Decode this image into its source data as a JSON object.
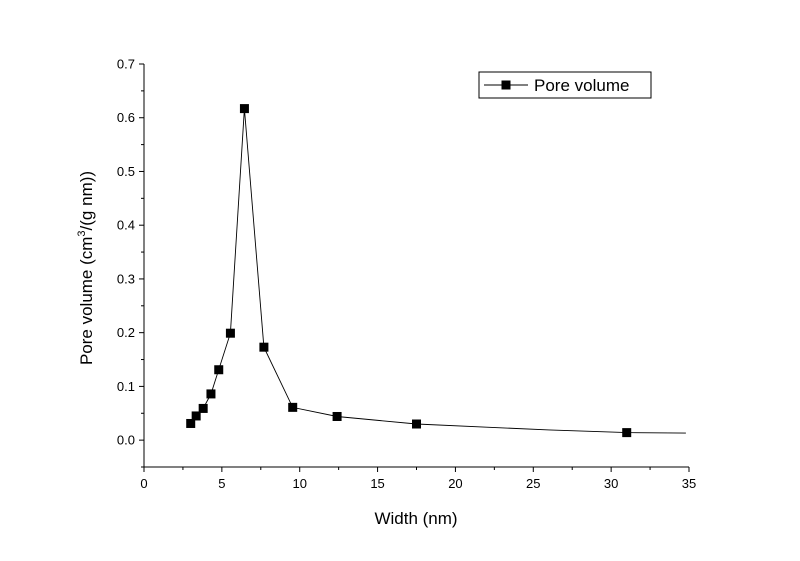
{
  "chart_data": {
    "type": "line",
    "xlabel": "Width (nm)",
    "ylabel": {
      "prefix": "Pore volume (cm",
      "superscript": "3",
      "suffix": "/(g nm))"
    },
    "xlim": [
      0,
      35
    ],
    "ylim": [
      -0.05,
      0.7
    ],
    "xticks": [
      "0",
      "5",
      "10",
      "15",
      "20",
      "25",
      "30",
      "35"
    ],
    "yticks": [
      "0.0",
      "0.1",
      "0.2",
      "0.3",
      "0.4",
      "0.5",
      "0.6",
      "0.7"
    ],
    "grid": false,
    "legend_position": "top-right",
    "marker": "square",
    "colors": {
      "series": "#000000",
      "axis": "#000000"
    },
    "series": [
      {
        "name": "Pore volume",
        "x": [
          3.0,
          3.35,
          3.8,
          4.3,
          4.8,
          5.55,
          6.45,
          7.7,
          9.55,
          12.4,
          17.5,
          31.0
        ],
        "y": [
          0.031,
          0.045,
          0.059,
          0.086,
          0.131,
          0.199,
          0.617,
          0.173,
          0.061,
          0.044,
          0.03,
          0.014
        ],
        "line_x": [
          3.0,
          3.35,
          3.8,
          4.3,
          4.8,
          5.55,
          6.45,
          7.7,
          9.55,
          12.4,
          17.5,
          22,
          26,
          31.0,
          34.8
        ],
        "line_y": [
          0.031,
          0.045,
          0.059,
          0.086,
          0.131,
          0.199,
          0.617,
          0.173,
          0.061,
          0.044,
          0.03,
          0.024,
          0.019,
          0.014,
          0.013
        ]
      }
    ]
  }
}
